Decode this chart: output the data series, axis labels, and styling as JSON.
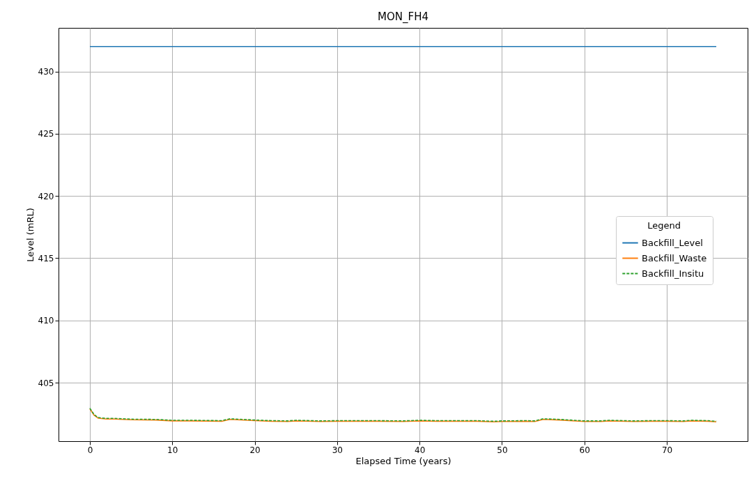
{
  "chart_data": {
    "type": "line",
    "title": "MON_FH4",
    "xlabel": "Elapsed Time (years)",
    "ylabel": "Level (mRL)",
    "legend_title": "Legend",
    "xlim": [
      -3.8,
      79.8
    ],
    "xticks": [
      0,
      10,
      20,
      30,
      40,
      50,
      60,
      70
    ],
    "ylim": [
      400.3,
      433.5
    ],
    "yticks": [
      405,
      410,
      415,
      420,
      425,
      430
    ],
    "grid": true,
    "legend": "right",
    "series": [
      {
        "name": "Backfill_Level",
        "color": "#1f77b4",
        "line_style": "solid",
        "x": [
          0,
          76
        ],
        "values": [
          432,
          432
        ]
      },
      {
        "name": "Backfill_Waste",
        "color": "#ff7f0e",
        "line_style": "solid",
        "x": [
          0,
          0.5,
          1,
          2,
          3,
          5,
          8,
          10,
          12,
          16,
          17,
          20,
          22,
          24,
          25,
          28,
          30,
          35,
          38,
          40,
          42,
          45,
          47,
          49,
          50,
          53,
          54,
          55,
          57,
          60,
          62,
          63,
          66,
          68,
          70,
          72,
          73,
          75,
          76
        ],
        "values": [
          402.9,
          402.4,
          402.15,
          402.08,
          402.08,
          402.02,
          402.0,
          401.93,
          401.93,
          401.9,
          402.05,
          401.95,
          401.9,
          401.88,
          401.93,
          401.88,
          401.9,
          401.9,
          401.88,
          401.93,
          401.9,
          401.9,
          401.9,
          401.85,
          401.88,
          401.9,
          401.88,
          402.05,
          402.0,
          401.88,
          401.88,
          401.93,
          401.88,
          401.9,
          401.9,
          401.88,
          401.93,
          401.9,
          401.85
        ]
      },
      {
        "name": "Backfill_Insitu",
        "color": "#2ca02c",
        "line_style": "dashed",
        "x": [
          0,
          0.5,
          1,
          2,
          3,
          5,
          8,
          10,
          12,
          16,
          17,
          20,
          22,
          24,
          25,
          28,
          30,
          35,
          38,
          40,
          42,
          45,
          47,
          49,
          50,
          53,
          54,
          55,
          57,
          60,
          62,
          63,
          66,
          68,
          70,
          72,
          73,
          75,
          76
        ],
        "values": [
          402.95,
          402.45,
          402.2,
          402.13,
          402.13,
          402.07,
          402.05,
          401.98,
          401.98,
          401.95,
          402.1,
          402.0,
          401.95,
          401.93,
          401.98,
          401.93,
          401.95,
          401.95,
          401.93,
          401.98,
          401.95,
          401.95,
          401.95,
          401.9,
          401.93,
          401.95,
          401.93,
          402.1,
          402.05,
          401.93,
          401.93,
          401.98,
          401.93,
          401.95,
          401.95,
          401.93,
          401.98,
          401.95,
          401.9
        ]
      }
    ]
  }
}
